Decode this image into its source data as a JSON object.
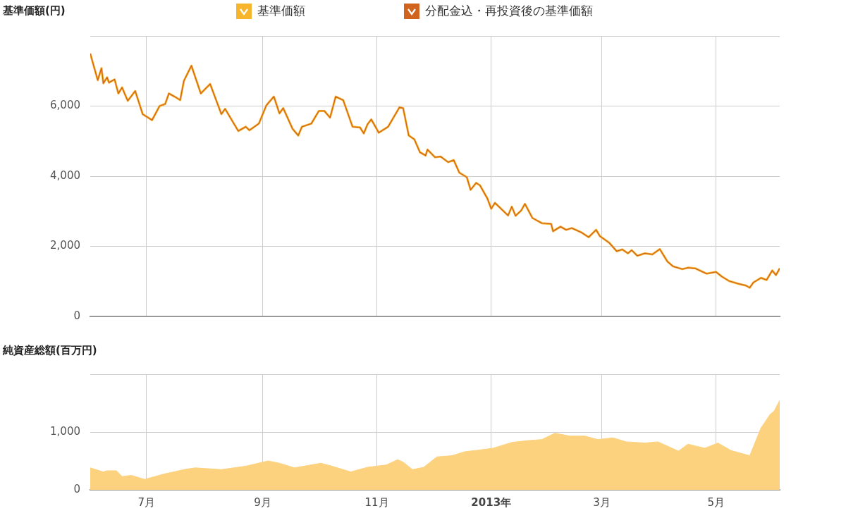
{
  "chart_data": [
    {
      "type": "line",
      "ylabel": "基準価額(円)",
      "legend": "top",
      "grid": true,
      "marker": "none",
      "tick_labels": "y",
      "xlim": [
        "2012-06-01",
        "2013-06-04"
      ],
      "xticks": [
        {
          "value": "2012-07-01",
          "label": null
        },
        {
          "value": "2012-09-01",
          "label": null
        },
        {
          "value": "2012-11-01",
          "label": null
        },
        {
          "value": "2013-01-01",
          "label": null
        },
        {
          "value": "2013-03-01",
          "label": null
        },
        {
          "value": "2013-05-01",
          "label": null
        }
      ],
      "ylim": [
        0,
        8000
      ],
      "yticks": [
        0,
        {
          "value": 2000,
          "label": "2,000"
        },
        {
          "value": 4000,
          "label": "4,000"
        },
        {
          "value": 6000,
          "label": "6,000"
        },
        {
          "value": 8000,
          "label": null
        }
      ],
      "x": [
        "2012-06-01",
        "2012-06-05",
        "2012-06-07",
        "2012-06-08",
        "2012-06-10",
        "2012-06-11",
        "2012-06-14",
        "2012-06-16",
        "2012-06-18",
        "2012-06-21",
        "2012-06-25",
        "2012-06-29",
        "2012-07-04",
        "2012-07-08",
        "2012-07-11",
        "2012-07-13",
        "2012-07-16",
        "2012-07-19",
        "2012-07-21",
        "2012-07-25",
        "2012-07-30",
        "2012-08-04",
        "2012-08-10",
        "2012-08-12",
        "2012-08-19",
        "2012-08-23",
        "2012-08-25",
        "2012-08-30",
        "2012-09-03",
        "2012-09-07",
        "2012-09-10",
        "2012-09-12",
        "2012-09-17",
        "2012-09-20",
        "2012-09-22",
        "2012-09-27",
        "2012-10-01",
        "2012-10-04",
        "2012-10-07",
        "2012-10-10",
        "2012-10-14",
        "2012-10-19",
        "2012-10-23",
        "2012-10-25",
        "2012-10-27",
        "2012-10-29",
        "2012-11-02",
        "2012-11-07",
        "2012-11-13",
        "2012-11-15",
        "2012-11-18",
        "2012-11-21",
        "2012-11-24",
        "2012-11-27",
        "2012-11-28",
        "2012-12-02",
        "2012-12-05",
        "2012-12-09",
        "2012-12-12",
        "2012-12-15",
        "2012-12-19",
        "2012-12-21",
        "2012-12-24",
        "2012-12-26",
        "2012-12-30",
        "2013-01-01",
        "2013-01-03",
        "2013-01-10",
        "2013-01-12",
        "2013-01-14",
        "2013-01-17",
        "2013-01-19",
        "2013-01-23",
        "2013-01-28",
        "2013-02-02",
        "2013-02-03",
        "2013-02-07",
        "2013-02-10",
        "2013-02-13",
        "2013-02-18",
        "2013-02-22",
        "2013-02-26",
        "2013-02-28",
        "2013-03-05",
        "2013-03-09",
        "2013-03-12",
        "2013-03-15",
        "2013-03-17",
        "2013-03-20",
        "2013-03-24",
        "2013-03-28",
        "2013-04-01",
        "2013-04-05",
        "2013-04-08",
        "2013-04-13",
        "2013-04-16",
        "2013-04-20",
        "2013-04-26",
        "2013-05-01",
        "2013-05-04",
        "2013-05-08",
        "2013-05-13",
        "2013-05-17",
        "2013-05-19",
        "2013-05-21",
        "2013-05-25",
        "2013-05-28",
        "2013-05-31",
        "2013-06-02",
        "2013-06-04"
      ],
      "series": [
        {
          "name": "基準価額",
          "color": "#f7b52c",
          "values": [
            7500,
            6740,
            7080,
            6650,
            6820,
            6670,
            6760,
            6360,
            6530,
            6150,
            6430,
            5770,
            5600,
            6000,
            6060,
            6360,
            6270,
            6170,
            6720,
            7150,
            6360,
            6630,
            5770,
            5920,
            5290,
            5410,
            5310,
            5500,
            6020,
            6270,
            5790,
            5940,
            5350,
            5160,
            5410,
            5500,
            5860,
            5860,
            5670,
            6270,
            6170,
            5410,
            5390,
            5220,
            5480,
            5620,
            5240,
            5410,
            5960,
            5940,
            5160,
            5050,
            4680,
            4590,
            4760,
            4540,
            4560,
            4400,
            4460,
            4100,
            3970,
            3610,
            3810,
            3740,
            3360,
            3070,
            3240,
            2880,
            3130,
            2870,
            3020,
            3210,
            2810,
            2660,
            2640,
            2430,
            2560,
            2470,
            2520,
            2400,
            2260,
            2470,
            2290,
            2100,
            1860,
            1910,
            1800,
            1890,
            1730,
            1800,
            1770,
            1920,
            1570,
            1430,
            1350,
            1390,
            1370,
            1220,
            1270,
            1140,
            1010,
            930,
            880,
            820,
            970,
            1100,
            1040,
            1310,
            1180,
            1370
          ]
        },
        {
          "name": "分配金込・再投資後の基準価額",
          "color": "#d0641e",
          "values": [
            7500,
            6740,
            7080,
            6650,
            6820,
            6670,
            6760,
            6360,
            6530,
            6150,
            6430,
            5770,
            5600,
            6000,
            6060,
            6360,
            6270,
            6170,
            6720,
            7150,
            6360,
            6630,
            5770,
            5920,
            5290,
            5410,
            5310,
            5500,
            6020,
            6270,
            5790,
            5940,
            5350,
            5160,
            5410,
            5500,
            5860,
            5860,
            5670,
            6270,
            6170,
            5410,
            5390,
            5220,
            5480,
            5620,
            5240,
            5410,
            5960,
            5940,
            5160,
            5050,
            4680,
            4590,
            4760,
            4540,
            4560,
            4400,
            4460,
            4100,
            3970,
            3610,
            3810,
            3740,
            3360,
            3070,
            3240,
            2880,
            3130,
            2870,
            3020,
            3210,
            2810,
            2660,
            2640,
            2430,
            2560,
            2470,
            2520,
            2400,
            2260,
            2470,
            2290,
            2100,
            1860,
            1910,
            1800,
            1890,
            1730,
            1800,
            1770,
            1920,
            1570,
            1430,
            1350,
            1390,
            1370,
            1220,
            1270,
            1140,
            1010,
            930,
            880,
            820,
            970,
            1100,
            1040,
            1310,
            1180,
            1370
          ]
        }
      ]
    },
    {
      "type": "area",
      "ylabel": "純資産総額(百万円)",
      "grid": true,
      "marker": "none",
      "color": "#fcd27f",
      "xlim": [
        "2012-06-01",
        "2013-06-04"
      ],
      "xticks": [
        {
          "value": "2012-07-01",
          "label": "7月"
        },
        {
          "value": "2012-09-01",
          "label": "9月"
        },
        {
          "value": "2012-11-01",
          "label": "11月"
        },
        {
          "value": "2013-01-01",
          "label": "2013年"
        },
        {
          "value": "2013-03-01",
          "label": "3月"
        },
        {
          "value": "2013-05-01",
          "label": "5月"
        }
      ],
      "ylim": [
        0,
        2000
      ],
      "yticks": [
        0,
        {
          "value": 1000,
          "label": "1,000"
        },
        {
          "value": 2000,
          "label": null
        }
      ],
      "x": [
        "2012-06-01",
        "2012-06-08",
        "2012-06-10",
        "2012-06-15",
        "2012-06-18",
        "2012-06-23",
        "2012-06-30",
        "2012-07-10",
        "2012-07-21",
        "2012-07-27",
        "2012-08-10",
        "2012-08-23",
        "2012-09-04",
        "2012-09-10",
        "2012-09-18",
        "2012-10-02",
        "2012-10-08",
        "2012-10-18",
        "2012-10-27",
        "2012-11-06",
        "2012-11-12",
        "2012-11-15",
        "2012-11-20",
        "2012-11-26",
        "2012-12-03",
        "2012-12-11",
        "2012-12-18",
        "2012-12-26",
        "2013-01-02",
        "2013-01-12",
        "2013-01-20",
        "2013-01-28",
        "2013-02-04",
        "2013-02-12",
        "2013-02-20",
        "2013-02-27",
        "2013-03-07",
        "2013-03-14",
        "2013-03-24",
        "2013-03-31",
        "2013-04-11",
        "2013-04-16",
        "2013-04-25",
        "2013-05-02",
        "2013-05-09",
        "2013-05-19",
        "2013-05-25",
        "2013-05-30",
        "2013-06-01",
        "2013-06-04"
      ],
      "values": [
        380,
        310,
        330,
        330,
        230,
        250,
        180,
        270,
        350,
        380,
        350,
        410,
        500,
        460,
        380,
        460,
        410,
        310,
        390,
        430,
        520,
        480,
        350,
        390,
        570,
        590,
        660,
        690,
        720,
        820,
        850,
        870,
        980,
        930,
        930,
        870,
        900,
        830,
        810,
        830,
        670,
        790,
        720,
        810,
        680,
        590,
        1070,
        1310,
        1360,
        1550
      ]
    }
  ]
}
